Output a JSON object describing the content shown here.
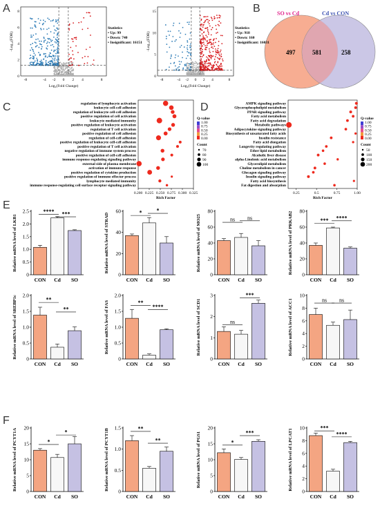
{
  "panel_labels": [
    "A",
    "B",
    "C",
    "D",
    "E",
    "F"
  ],
  "colors": {
    "con": "#f4a582",
    "cd": "#f7f7f7",
    "so": "#c5c1e3",
    "up": "#d7191c",
    "down": "#2c7bb6",
    "ns": "#b0b0b0"
  },
  "volcano": [
    {
      "stats_title": "Statistics",
      "stats": [
        "• Up: 99",
        "• Down: 740",
        "• Insignificant: 16151"
      ],
      "xlabel": "Log₂(Fold Change)",
      "ylabel": "-Log₁₀(FDR)",
      "xticks": [
        "-8",
        "-4",
        "-2",
        "0",
        "2",
        "4",
        "8"
      ],
      "yticks": [
        "0",
        "2",
        "4",
        "6",
        "8"
      ],
      "ymax": 8
    },
    {
      "stats_title": "Statistics",
      "stats": [
        "• Up: 918",
        "• Down: 160",
        "• Insignificant: 16031"
      ],
      "xlabel": "Log₂(Fold Change)",
      "ylabel": "-Log₁₀(FDR)",
      "xticks": [
        "-8",
        "-4",
        "-2",
        "0",
        "2",
        "4",
        "8"
      ],
      "yticks": [
        "0",
        "5",
        "10",
        "15"
      ],
      "ymax": 15
    }
  ],
  "venn": {
    "labels": [
      "SO vs Cd",
      "Cd vs CON"
    ],
    "left_only": "497",
    "both": "581",
    "right_only": "258"
  },
  "chart_data": [
    {
      "type": "scatter",
      "panel": "C",
      "xlabel": "Rich Factor",
      "xlim": [
        0.2,
        0.325
      ],
      "xticks": [
        "0.200",
        "0.225",
        "0.250",
        "0.275",
        "0.300",
        "0.325"
      ],
      "qvalue_title": "Q-value",
      "qvalue_ticks": [
        "1.00",
        "0.75",
        "0.50",
        "0.25",
        "0.00"
      ],
      "count_title": "Count",
      "count_ticks": [
        "70",
        "80",
        "90",
        "100"
      ],
      "terms": [
        {
          "term": "regulation of lymphocyte activation",
          "rich": 0.262,
          "count": 95,
          "q": 0.05
        },
        {
          "term": "leukocyte cell-cell adhesion",
          "rich": 0.275,
          "count": 88,
          "q": 0.05
        },
        {
          "term": "regulation of leukocyte cell-cell adhesion",
          "rich": 0.278,
          "count": 80,
          "q": 0.05
        },
        {
          "term": "positive regulation of cell activation",
          "rich": 0.282,
          "count": 82,
          "q": 0.05
        },
        {
          "term": "leukocyte mediated immunity",
          "rich": 0.248,
          "count": 98,
          "q": 0.05
        },
        {
          "term": "positive regulation of leukocyte activation",
          "rich": 0.279,
          "count": 80,
          "q": 0.05
        },
        {
          "term": "regulation of T cell activation",
          "rich": 0.271,
          "count": 79,
          "q": 0.05
        },
        {
          "term": "positive regulation of cell adhesion",
          "rich": 0.262,
          "count": 82,
          "q": 0.05
        },
        {
          "term": "regulation of cell-cell adhesion",
          "rich": 0.246,
          "count": 92,
          "q": 0.05
        },
        {
          "term": "positive regulation of leukocyte cell-cell adhesion",
          "rich": 0.295,
          "count": 70,
          "q": 0.05
        },
        {
          "term": "positive regulation of T cell activation",
          "rich": 0.289,
          "count": 70,
          "q": 0.05
        },
        {
          "term": "negative regulation of immune system process",
          "rich": 0.255,
          "count": 80,
          "q": 0.05
        },
        {
          "term": "positive regulation of cell-cell adhesion",
          "rich": 0.276,
          "count": 70,
          "q": 0.05
        },
        {
          "term": "immune response-regulating signaling pathway",
          "rich": 0.256,
          "count": 78,
          "q": 0.05
        },
        {
          "term": "external side of plasma membrane",
          "rich": 0.202,
          "count": 95,
          "q": 0.05
        },
        {
          "term": "activation of immune response",
          "rich": 0.245,
          "count": 80,
          "q": 0.05
        },
        {
          "term": "positive regulation of cytokine production",
          "rich": 0.226,
          "count": 90,
          "q": 0.05
        },
        {
          "term": "positive regulation of immune effector process",
          "rich": 0.276,
          "count": 64,
          "q": 0.05
        },
        {
          "term": "lymphocyte mediated immunity",
          "rich": 0.249,
          "count": 72,
          "q": 0.05
        },
        {
          "term": "immune response-regulating cell surface receptor signaling pathway",
          "rich": 0.265,
          "count": 66,
          "q": 0.05
        }
      ]
    },
    {
      "type": "scatter",
      "panel": "D",
      "xlabel": "Rich Factor",
      "xlim": [
        0.15,
        1.0
      ],
      "xticks": [
        "0.25",
        "0.5",
        "0.75",
        "1.00"
      ],
      "qvalue_title": "Q-value",
      "qvalue_ticks": [
        "1.00",
        "0.75",
        "0.50",
        "0.25",
        "0.00"
      ],
      "count_title": "Count",
      "count_ticks": [
        "50",
        "100",
        "150",
        "200"
      ],
      "terms": [
        {
          "term": "AMPK signaling pathway",
          "rich": 0.99,
          "count": 60,
          "q": 0.1
        },
        {
          "term": "Glycerophospholipid metabolism",
          "rich": 0.98,
          "count": 50,
          "q": 0.1
        },
        {
          "term": "PPAR signaling pathway",
          "rich": 0.92,
          "count": 55,
          "q": 0.1
        },
        {
          "term": "Fatty acid metabolism",
          "rich": 0.95,
          "count": 50,
          "q": 0.1
        },
        {
          "term": "Fatty acid degradation",
          "rich": 0.88,
          "count": 50,
          "q": 0.1
        },
        {
          "term": "Metabolic pathways",
          "rich": 0.16,
          "count": 200,
          "q": 0.1
        },
        {
          "term": "Adipocytokine signaling pathway",
          "rich": 0.86,
          "count": 45,
          "q": 0.1
        },
        {
          "term": "Biosynthesis of unsaturated fatty acids",
          "rich": 0.98,
          "count": 30,
          "q": 0.1
        },
        {
          "term": "Insulin resistance",
          "rich": 0.68,
          "count": 50,
          "q": 0.1
        },
        {
          "term": "Fatty acid elongation",
          "rich": 0.95,
          "count": 30,
          "q": 0.1
        },
        {
          "term": "Longevity regulating pathway",
          "rich": 0.62,
          "count": 45,
          "q": 0.1
        },
        {
          "term": "Ether lipid metabolism",
          "rich": 0.58,
          "count": 40,
          "q": 0.1
        },
        {
          "term": "Alcoholic liver disease",
          "rich": 0.52,
          "count": 50,
          "q": 0.1
        },
        {
          "term": "alpha-Linolenic acid metabolism",
          "rich": 0.76,
          "count": 30,
          "q": 0.1
        },
        {
          "term": "Glycerolipid metabolism",
          "rich": 0.6,
          "count": 40,
          "q": 0.1
        },
        {
          "term": "Choline metabolism in cancer",
          "rich": 0.48,
          "count": 50,
          "q": 0.1
        },
        {
          "term": "Glucagon signaling pathway",
          "rich": 0.46,
          "count": 45,
          "q": 0.1
        },
        {
          "term": "Insulin signaling pathway",
          "rich": 0.4,
          "count": 55,
          "q": 0.1
        },
        {
          "term": "Fatty acid biosynthesis",
          "rich": 0.96,
          "count": 25,
          "q": 0.1
        },
        {
          "term": "Fat digestion and absorption",
          "rich": 0.72,
          "count": 40,
          "q": 0.1
        }
      ]
    },
    {
      "type": "bar",
      "panel": "E",
      "gene": "LKB1",
      "ylabel": "Relative mRNA level of LKB1",
      "categories": [
        "CON",
        "Cd",
        "SO"
      ],
      "values": [
        1.08,
        2.24,
        1.74
      ],
      "errors": [
        0.08,
        0.05,
        0.03
      ],
      "ylim": [
        0,
        2.5
      ],
      "yticks": [
        "0",
        "0.5",
        "1.0",
        "1.5",
        "2.0",
        "2.5"
      ],
      "sig": [
        {
          "from": 0,
          "to": 1,
          "label": "****",
          "y": 2.38
        },
        {
          "from": 1,
          "to": 2,
          "label": "***",
          "y": 2.28
        }
      ]
    },
    {
      "type": "bar",
      "panel": "E",
      "gene": "STRAD",
      "ylabel": "Relative mRNA level of STRAD",
      "categories": [
        "CON",
        "Cd",
        "SO"
      ],
      "values": [
        37,
        49,
        30
      ],
      "errors": [
        1.5,
        5,
        6
      ],
      "ylim": [
        0,
        60
      ],
      "yticks": [
        "0",
        "20",
        "40",
        "60"
      ],
      "sig": [
        {
          "from": 0,
          "to": 1,
          "label": "*",
          "y": 56
        },
        {
          "from": 1,
          "to": 2,
          "label": "*",
          "y": 58
        }
      ]
    },
    {
      "type": "bar",
      "panel": "E",
      "gene": "MO25",
      "ylabel": "Relative mRNA level of MO25",
      "categories": [
        "CON",
        "Cd",
        "SO"
      ],
      "values": [
        43,
        47,
        36.5
      ],
      "errors": [
        2.5,
        5,
        6.5
      ],
      "ylim": [
        0,
        80
      ],
      "yticks": [
        "0",
        "20",
        "40",
        "60",
        "80"
      ],
      "sig": [
        {
          "from": 0,
          "to": 1,
          "label": "ns",
          "y": 66
        },
        {
          "from": 1,
          "to": 2,
          "label": "ns",
          "y": 68
        }
      ]
    },
    {
      "type": "bar",
      "panel": "E",
      "gene": "PRKAB2",
      "ylabel": "Relative mRNA level of PRKAB2",
      "categories": [
        "CON",
        "Cd",
        "SO"
      ],
      "values": [
        37,
        59,
        33.5
      ],
      "errors": [
        3,
        1,
        1.5
      ],
      "ylim": [
        0,
        80
      ],
      "yticks": [
        "0",
        "20",
        "40",
        "60",
        "80"
      ],
      "sig": [
        {
          "from": 0,
          "to": 1,
          "label": "***",
          "y": 65
        },
        {
          "from": 1,
          "to": 2,
          "label": "****",
          "y": 68
        }
      ]
    },
    {
      "type": "bar",
      "panel": "E",
      "gene": "SREBP1c",
      "ylabel": "Relative mRNA level of SREBP1c",
      "categories": [
        "CON",
        "Cd",
        "SO"
      ],
      "values": [
        1.38,
        0.37,
        0.89
      ],
      "errors": [
        0.25,
        0.1,
        0.12
      ],
      "ylim": [
        0,
        2.0
      ],
      "yticks": [
        "0",
        "0.5",
        "1.0",
        "1.5",
        "2.0"
      ],
      "sig": [
        {
          "from": 0,
          "to": 1,
          "label": "**",
          "y": 1.78
        },
        {
          "from": 1,
          "to": 2,
          "label": "**",
          "y": 1.48
        }
      ]
    },
    {
      "type": "bar",
      "panel": "E",
      "gene": "FAS",
      "ylabel": "Relative mRNA level of FAS",
      "categories": [
        "CON",
        "Cd",
        "SO"
      ],
      "values": [
        1.28,
        0.12,
        0.92
      ],
      "errors": [
        0.28,
        0.04,
        0.03
      ],
      "ylim": [
        0,
        2.0
      ],
      "yticks": [
        "0",
        "0.5",
        "1.0",
        "1.5",
        "2.0"
      ],
      "sig": [
        {
          "from": 0,
          "to": 1,
          "label": "**",
          "y": 1.68
        },
        {
          "from": 1,
          "to": 2,
          "label": "****",
          "y": 1.55
        }
      ]
    },
    {
      "type": "bar",
      "panel": "E",
      "gene": "SCD1",
      "ylabel": "Relative mRNA level of SCD1",
      "categories": [
        "CON",
        "Cd",
        "SO"
      ],
      "values": [
        1.3,
        1.17,
        2.63
      ],
      "errors": [
        0.22,
        0.18,
        0.15
      ],
      "ylim": [
        0,
        3
      ],
      "yticks": [
        "0",
        "1",
        "2",
        "3"
      ],
      "sig": [
        {
          "from": 0,
          "to": 1,
          "label": "ns",
          "y": 1.62
        },
        {
          "from": 1,
          "to": 2,
          "label": "***",
          "y": 2.88
        }
      ]
    },
    {
      "type": "bar",
      "panel": "E",
      "gene": "ACC1",
      "ylabel": "Relative mRNA level of ACC1",
      "categories": [
        "CON",
        "Cd",
        "SO"
      ],
      "values": [
        7.0,
        5.3,
        6.2
      ],
      "errors": [
        1.0,
        0.5,
        1.5
      ],
      "ylim": [
        0,
        10
      ],
      "yticks": [
        "0",
        "2",
        "4",
        "6",
        "8",
        "10"
      ],
      "sig": [
        {
          "from": 0,
          "to": 1,
          "label": "ns",
          "y": 8.8
        },
        {
          "from": 1,
          "to": 2,
          "label": "ns",
          "y": 8.8
        }
      ]
    },
    {
      "type": "bar",
      "panel": "F",
      "gene": "PCYT1A",
      "ylabel": "Relative mRNA level of PCYT1A",
      "categories": [
        "CON",
        "Cd",
        "SO"
      ],
      "values": [
        13,
        10.7,
        15
      ],
      "errors": [
        0.5,
        1.0,
        2.3
      ],
      "ylim": [
        0,
        20
      ],
      "yticks": [
        "0",
        "5",
        "10",
        "15",
        "20"
      ],
      "sig": [
        {
          "from": 0,
          "to": 1,
          "label": "*",
          "y": 14.8
        },
        {
          "from": 1,
          "to": 2,
          "label": "*",
          "y": 17.8
        }
      ]
    },
    {
      "type": "bar",
      "panel": "F",
      "gene": "PCYT1B",
      "ylabel": "Relative mRNA level of PCYT1B",
      "categories": [
        "CON",
        "Cd",
        "SO"
      ],
      "values": [
        1.2,
        0.55,
        0.95
      ],
      "errors": [
        0.12,
        0.04,
        0.1
      ],
      "ylim": [
        0,
        1.5
      ],
      "yticks": [
        "0",
        "0.5",
        "1.0",
        "1.5"
      ],
      "sig": [
        {
          "from": 0,
          "to": 1,
          "label": "**",
          "y": 1.42
        },
        {
          "from": 1,
          "to": 2,
          "label": "**",
          "y": 1.14
        }
      ]
    },
    {
      "type": "bar",
      "panel": "F",
      "gene": "PGS1",
      "ylabel": "Relative mRNA level of PGS1",
      "categories": [
        "CON",
        "Cd",
        "SO"
      ],
      "values": [
        12.2,
        10.1,
        15.8
      ],
      "errors": [
        1.2,
        0.6,
        0.5
      ],
      "ylim": [
        0,
        20
      ],
      "yticks": [
        "0",
        "5",
        "10",
        "15",
        "20"
      ],
      "sig": [
        {
          "from": 0,
          "to": 1,
          "label": "*",
          "y": 14.6
        },
        {
          "from": 1,
          "to": 2,
          "label": "***",
          "y": 17.6
        }
      ]
    },
    {
      "type": "bar",
      "panel": "F",
      "gene": "LPCAT1",
      "ylabel": "Relative mRNA level of LPCAT1",
      "categories": [
        "CON",
        "Cd",
        "SO"
      ],
      "values": [
        8.8,
        3.2,
        7.7
      ],
      "errors": [
        0.4,
        0.3,
        0.2
      ],
      "ylim": [
        0,
        10
      ],
      "yticks": [
        "0",
        "2",
        "4",
        "6",
        "8",
        "10"
      ],
      "sig": [
        {
          "from": 0,
          "to": 1,
          "label": "***",
          "y": 9.55
        },
        {
          "from": 1,
          "to": 2,
          "label": "****",
          "y": 8.6
        }
      ]
    }
  ]
}
